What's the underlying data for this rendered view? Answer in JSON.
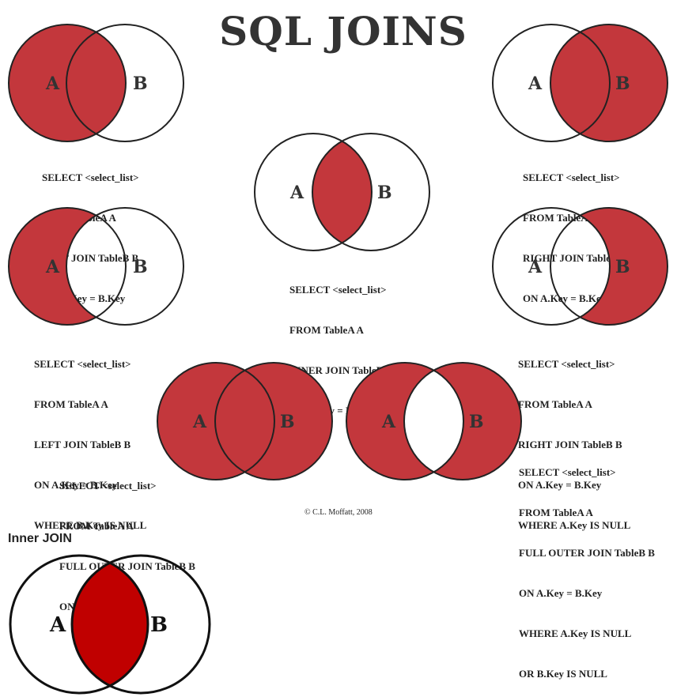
{
  "title": "SQL JOINS",
  "colors": {
    "fill": "#c3373c",
    "fill_dark": "#c00000",
    "stroke": "#222222"
  },
  "diagrams": [
    {
      "id": "left-join",
      "label_a": "A",
      "label_b": "B",
      "lines": [
        "SELECT <select_list>",
        "FROM TableA A",
        "LEFT JOIN TableB B",
        "ON A.Key = B.Key"
      ]
    },
    {
      "id": "right-join",
      "label_a": "A",
      "label_b": "B",
      "lines": [
        "SELECT <select_list>",
        "FROM TableA A",
        "RIGHT JOIN TableB B",
        "ON A.Key = B.Key"
      ]
    },
    {
      "id": "inner-join",
      "label_a": "A",
      "label_b": "B",
      "lines": [
        "SELECT <select_list>",
        "FROM TableA A",
        "INNER JOIN TableB B",
        "ON A.Key = B.Key"
      ]
    },
    {
      "id": "left-join-null",
      "label_a": "A",
      "label_b": "B",
      "lines": [
        "SELECT <select_list>",
        "FROM TableA A",
        "LEFT JOIN TableB B",
        "ON A.Key = B.Key",
        "WHERE B.Key IS NULL"
      ]
    },
    {
      "id": "right-join-null",
      "label_a": "A",
      "label_b": "B",
      "lines": [
        "SELECT <select_list>",
        "FROM TableA A",
        "RIGHT JOIN TableB B",
        "ON A.Key = B.Key",
        "WHERE A.Key IS NULL"
      ]
    },
    {
      "id": "full-outer-join",
      "label_a": "A",
      "label_b": "B",
      "lines": [
        "SELECT <select_list>",
        "FROM TableA A",
        "FULL OUTER JOIN TableB B",
        "ON A.Key = B.Key"
      ]
    },
    {
      "id": "full-outer-join-null",
      "label_a": "A",
      "label_b": "B",
      "lines": [
        "SELECT <select_list>",
        "FROM TableA A",
        "FULL OUTER JOIN TableB B",
        "ON A.Key = B.Key",
        "WHERE A.Key IS NULL",
        "OR B.Key IS NULL"
      ]
    }
  ],
  "copyright": "© C.L. Moffatt, 2008",
  "inner_join_section": {
    "heading": "Inner JOIN",
    "label_a": "A",
    "label_b": "B"
  }
}
